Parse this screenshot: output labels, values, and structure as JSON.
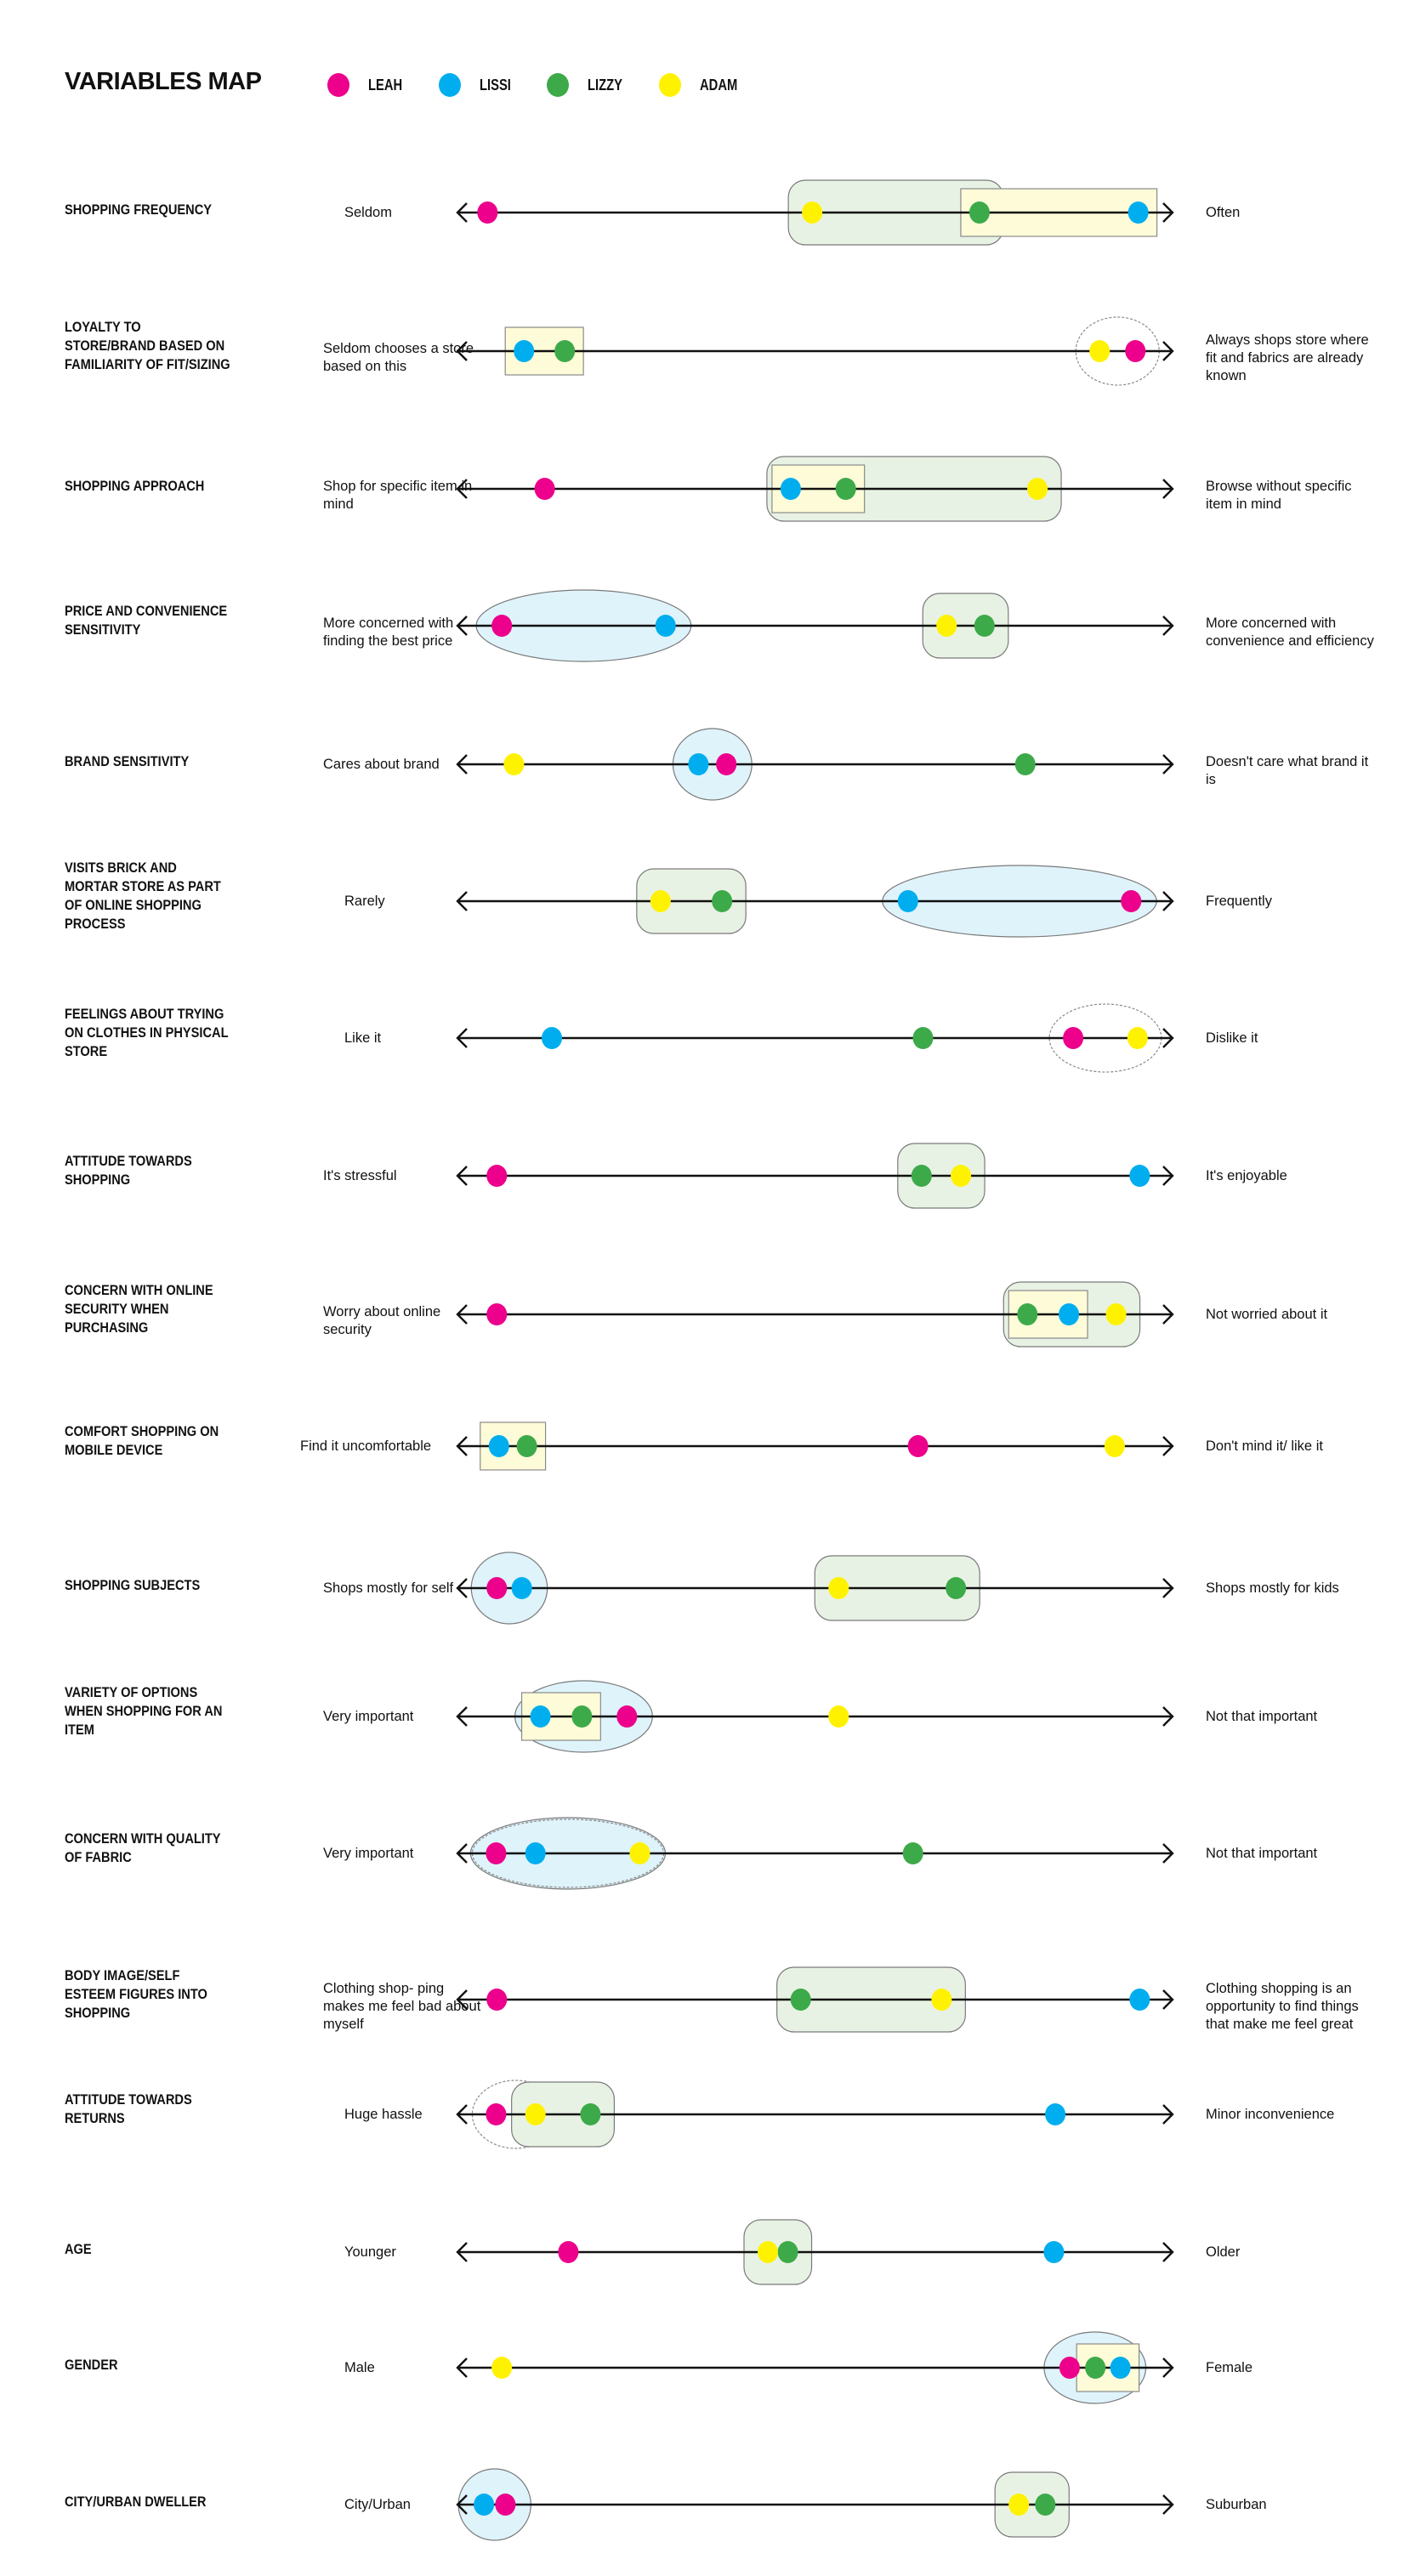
{
  "title": "VARIABLES MAP",
  "legend": [
    {
      "key": "leah",
      "label": "LEAH",
      "color": "#EC008C"
    },
    {
      "key": "lissi",
      "label": "LISSI",
      "color": "#00AEEF"
    },
    {
      "key": "lizzy",
      "label": "LIZZY",
      "color": "#3DAA4A"
    },
    {
      "key": "adam",
      "label": "ADAM",
      "color": "#FFF200"
    }
  ],
  "group_styles": {
    "green_box": {
      "fill": "#E8F2E4",
      "stroke": "#7a7a7a"
    },
    "yellow_box": {
      "fill": "#FEFBD8",
      "stroke": "#8a8a8a"
    },
    "blue_ellipse": {
      "fill": "#DFF3FB",
      "stroke": "#7a7a7a"
    },
    "dotted_ellipse": {
      "fill": "none",
      "stroke": "#8a8a8a"
    }
  },
  "chart_data": {
    "type": "scatter",
    "title": "VARIABLES MAP",
    "scale": [
      0,
      100
    ],
    "series_keys": [
      "leah",
      "lissi",
      "lizzy",
      "adam"
    ],
    "rows": [
      {
        "label": "SHOPPING FREQUENCY",
        "left": "Seldom",
        "right": "Often",
        "values": {
          "leah": 4.2,
          "lissi": 95.2,
          "lizzy": 73.0,
          "adam": 49.6
        },
        "groups": [
          {
            "style": "green_box",
            "members": [
              "adam",
              "lizzy"
            ]
          },
          {
            "style": "yellow_box",
            "members": [
              "lizzy",
              "lissi"
            ]
          }
        ]
      },
      {
        "label": "LOYALTY TO STORE/BRAND BASED ON FAMILIARITY OF FIT/SIZING",
        "left": "Seldom chooses a store based on this",
        "right": "Always shops store where fit and fabrics are already known",
        "values": {
          "leah": 94.8,
          "lissi": 9.3,
          "lizzy": 15.0,
          "adam": 89.8
        },
        "groups": [
          {
            "style": "yellow_box",
            "members": [
              "lissi",
              "lizzy"
            ]
          },
          {
            "style": "dotted_ellipse",
            "members": [
              "adam",
              "leah"
            ]
          }
        ]
      },
      {
        "label": "SHOPPING APPROACH",
        "left": "Shop for specific item in mind",
        "right": "Browse without specific item in mind",
        "values": {
          "leah": 12.2,
          "lissi": 46.6,
          "lizzy": 54.3,
          "adam": 81.1
        },
        "groups": [
          {
            "style": "green_box",
            "members": [
              "lissi",
              "lizzy",
              "adam"
            ]
          },
          {
            "style": "yellow_box",
            "members": [
              "lissi",
              "lizzy"
            ]
          }
        ]
      },
      {
        "label": "PRICE AND CONVENIENCE SENSITIVITY",
        "left": "More concerned with finding the best price",
        "right": "More concerned with convenience and efficiency",
        "values": {
          "leah": 6.2,
          "lissi": 29.1,
          "lizzy": 73.7,
          "adam": 68.4
        },
        "groups": [
          {
            "style": "blue_ellipse",
            "members": [
              "leah",
              "lissi"
            ]
          },
          {
            "style": "green_box",
            "members": [
              "adam",
              "lizzy"
            ]
          }
        ]
      },
      {
        "label": "BRAND SENSITIVITY",
        "left": "Cares about brand",
        "right": "Doesn't care what brand it is",
        "values": {
          "leah": 37.6,
          "lissi": 33.7,
          "lizzy": 79.4,
          "adam": 7.9
        },
        "groups": [
          {
            "style": "blue_ellipse",
            "members": [
              "lissi",
              "leah"
            ]
          }
        ]
      },
      {
        "label": "VISITS BRICK AND MORTAR STORE AS PART OF ONLINE SHOPPING PROCESS",
        "left": "Rarely",
        "right": "Frequently",
        "values": {
          "leah": 94.2,
          "lissi": 63.0,
          "lizzy": 37.0,
          "adam": 28.4
        },
        "groups": [
          {
            "style": "green_box",
            "members": [
              "adam",
              "lizzy"
            ]
          },
          {
            "style": "blue_ellipse",
            "members": [
              "lissi",
              "leah"
            ]
          }
        ]
      },
      {
        "label": "FEELINGS ABOUT TRYING ON CLOTHES IN PHYSICAL STORE",
        "left": "Like it",
        "right": "Dislike it",
        "values": {
          "leah": 86.1,
          "lissi": 13.2,
          "lizzy": 65.1,
          "adam": 95.1
        },
        "groups": [
          {
            "style": "dotted_ellipse",
            "members": [
              "leah",
              "adam"
            ]
          }
        ]
      },
      {
        "label": "ATTITUDE TOWARDS SHOPPING",
        "left": "It's stressful",
        "right": "It's enjoyable",
        "values": {
          "leah": 5.5,
          "lissi": 95.4,
          "lizzy": 64.9,
          "adam": 70.4
        },
        "groups": [
          {
            "style": "green_box",
            "members": [
              "lizzy",
              "adam"
            ]
          }
        ]
      },
      {
        "label": "CONCERN WITH ONLINE SECURITY WHEN PURCHASING",
        "left": "Worry about online security",
        "right": "Not worried about it",
        "values": {
          "leah": 5.5,
          "lissi": 85.5,
          "lizzy": 79.7,
          "adam": 92.1
        },
        "groups": [
          {
            "style": "green_box",
            "members": [
              "lizzy",
              "lissi",
              "adam"
            ]
          },
          {
            "style": "yellow_box",
            "members": [
              "lizzy",
              "lissi"
            ]
          }
        ]
      },
      {
        "label": "COMFORT SHOPPING ON MOBILE DEVICE",
        "left": "Find it uncomfortable",
        "right": "Don't mind it/ like it",
        "values": {
          "leah": 64.4,
          "lissi": 5.8,
          "lizzy": 9.7,
          "adam": 91.9
        },
        "groups": [
          {
            "style": "yellow_box",
            "members": [
              "lissi",
              "lizzy"
            ]
          }
        ]
      },
      {
        "label": "SHOPPING SUBJECTS",
        "left": "Shops mostly for self",
        "right": "Shops mostly for kids",
        "values": {
          "leah": 5.5,
          "lissi": 9.0,
          "lizzy": 69.7,
          "adam": 53.3
        },
        "groups": [
          {
            "style": "blue_ellipse",
            "members": [
              "leah",
              "lissi"
            ]
          },
          {
            "style": "green_box",
            "members": [
              "adam",
              "lizzy"
            ]
          }
        ]
      },
      {
        "label": "VARIETY OF OPTIONS WHEN SHOPPING FOR AN ITEM",
        "left": "Very important",
        "right": "Not that important",
        "values": {
          "leah": 23.7,
          "lissi": 11.6,
          "lizzy": 17.4,
          "adam": 53.3
        },
        "groups": [
          {
            "style": "blue_ellipse",
            "members": [
              "lissi",
              "lizzy",
              "leah"
            ]
          },
          {
            "style": "yellow_box",
            "members": [
              "lissi",
              "lizzy"
            ]
          }
        ]
      },
      {
        "label": "CONCERN WITH QUALITY OF FABRIC",
        "left": "Very important",
        "right": "Not that important",
        "values": {
          "leah": 5.4,
          "lissi": 10.9,
          "lizzy": 63.7,
          "adam": 25.5
        },
        "groups": [
          {
            "style": "blue_ellipse",
            "members": [
              "leah",
              "lissi",
              "adam"
            ]
          },
          {
            "style": "dotted_ellipse",
            "members": [
              "leah",
              "lissi",
              "adam"
            ]
          }
        ]
      },
      {
        "label": "BODY IMAGE/SELF ESTEEM FIGURES INTO SHOPPING",
        "left": "Clothing shop- ping makes me feel bad about myself",
        "right": "Clothing shopping is an opportunity to find things that make me feel great",
        "values": {
          "leah": 5.5,
          "lissi": 95.4,
          "lizzy": 48.0,
          "adam": 67.7
        },
        "groups": [
          {
            "style": "green_box",
            "members": [
              "lizzy",
              "adam"
            ]
          }
        ]
      },
      {
        "label": "ATTITUDE TOWARDS RETURNS",
        "left": "Huge hassle",
        "right": "Minor inconvenience",
        "values": {
          "leah": 5.4,
          "lissi": 83.6,
          "lizzy": 18.6,
          "adam": 10.9
        },
        "groups": [
          {
            "style": "dotted_ellipse",
            "members": [
              "leah",
              "adam"
            ]
          },
          {
            "style": "green_box",
            "members": [
              "adam",
              "lizzy"
            ]
          }
        ]
      },
      {
        "label": "AGE",
        "left": "Younger",
        "right": "Older",
        "values": {
          "leah": 15.5,
          "lissi": 83.4,
          "lizzy": 46.2,
          "adam": 43.4
        },
        "groups": [
          {
            "style": "green_box",
            "members": [
              "adam",
              "lizzy"
            ]
          }
        ]
      },
      {
        "label": "GENDER",
        "left": "Male",
        "right": "Female",
        "values": {
          "leah": 85.6,
          "lissi": 92.7,
          "lizzy": 89.2,
          "adam": 6.2
        },
        "groups": [
          {
            "style": "blue_ellipse",
            "members": [
              "leah",
              "lizzy",
              "lissi"
            ]
          },
          {
            "style": "yellow_box",
            "members": [
              "lizzy",
              "lissi"
            ]
          }
        ]
      },
      {
        "label": "CITY/URBAN DWELLER",
        "left": "City/Urban",
        "right": "Suburban",
        "values": {
          "leah": 6.7,
          "lissi": 3.7,
          "lizzy": 82.2,
          "adam": 78.5
        },
        "groups": [
          {
            "style": "blue_ellipse",
            "members": [
              "lissi",
              "leah"
            ]
          },
          {
            "style": "green_box",
            "members": [
              "adam",
              "lizzy"
            ]
          }
        ]
      }
    ]
  }
}
